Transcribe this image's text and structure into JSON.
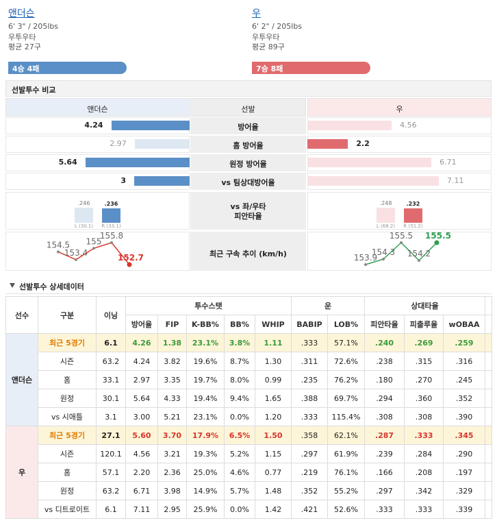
{
  "pitchers": [
    {
      "name": "앤더슨",
      "body": "6' 3\" / 205lbs",
      "hand": "우투우타",
      "pitches": "평균 27구",
      "record": "4승 4패",
      "color": "#5b8fc7"
    },
    {
      "name": "우",
      "body": "6' 2\" / 205lbs",
      "hand": "우투우타",
      "pitches": "평균 89구",
      "record": "7승 8패",
      "color": "#e06b6e"
    }
  ],
  "comparison": {
    "title": "선발투수 비교",
    "header": [
      "앤더슨",
      "선발",
      "우"
    ],
    "rows": [
      {
        "label": "방어율",
        "left": 4.24,
        "right": 4.56
      },
      {
        "label": "홈 방어율",
        "left": 2.97,
        "right": 2.2
      },
      {
        "label": "원정 방어율",
        "left": 5.64,
        "right": 6.71
      },
      {
        "label": "vs 팀상대방어율",
        "left": 3,
        "right": 7.11
      }
    ],
    "split": {
      "label": [
        "vs 좌/우타",
        "피안타율"
      ],
      "left": [
        {
          "value": 0.246,
          "label": ".246",
          "split": "L (30.1)"
        },
        {
          "value": 0.236,
          "label": ".236",
          "split": "R (33.1)"
        }
      ],
      "right": [
        {
          "value": 0.248,
          "label": ".248",
          "split": "L (68.2)"
        },
        {
          "value": 0.232,
          "label": ".232",
          "split": "R (51.2)"
        }
      ]
    },
    "velocity": {
      "label": "최근 구속 추이 (km/h)",
      "left": [
        154.5,
        153.4,
        155,
        155.8,
        152.7
      ],
      "right": [
        153.9,
        154.3,
        155.5,
        154.2,
        155.5
      ],
      "left_color": "#d9342b",
      "right_color": "#2e9e4f"
    }
  },
  "detail": {
    "title": "선발투수 상세데이터",
    "columns": [
      "선수",
      "구분",
      "이닝"
    ],
    "column_groups": [
      {
        "name": "투수스탯",
        "columns": [
          "방어율",
          "FIP",
          "K-BB%",
          "BB%",
          "WHIP"
        ]
      },
      {
        "name": "운",
        "columns": [
          "BABIP",
          "LOB%"
        ]
      },
      {
        "name": "상대타율",
        "columns": [
          "피안타율",
          "피출루율",
          "wOBAA"
        ]
      }
    ],
    "groups": [
      {
        "name": "앤더슨",
        "color": "#3a9a3a",
        "background": "#e8eef7",
        "rows": [
          {
            "label": "최근 5경기",
            "cells": [
              "6.1",
              "4.26",
              "1.38",
              "23.1%",
              "3.8%",
              "1.11",
              ".333",
              "57.1%",
              ".240",
              ".269",
              ".259"
            ]
          },
          {
            "label": "시즌",
            "cells": [
              "63.2",
              "4.24",
              "3.82",
              "19.6%",
              "8.7%",
              "1.30",
              ".311",
              "72.6%",
              ".238",
              ".315",
              ".316"
            ]
          },
          {
            "label": "홈",
            "cells": [
              "33.1",
              "2.97",
              "3.35",
              "19.7%",
              "8.0%",
              "0.99",
              ".235",
              "76.2%",
              ".180",
              ".270",
              ".245"
            ]
          },
          {
            "label": "원정",
            "cells": [
              "30.1",
              "5.64",
              "4.33",
              "19.4%",
              "9.4%",
              "1.65",
              ".388",
              "69.7%",
              ".294",
              ".360",
              ".352"
            ]
          },
          {
            "label": "vs 시애틀",
            "cells": [
              "3.1",
              "3.00",
              "5.21",
              "23.1%",
              "0.0%",
              "1.20",
              ".333",
              "115.4%",
              ".308",
              ".308",
              ".390"
            ]
          }
        ]
      },
      {
        "name": "우",
        "color": "#d9342b",
        "background": "#fbe9ea",
        "rows": [
          {
            "label": "최근 5경기",
            "cells": [
              "27.1",
              "5.60",
              "3.70",
              "17.9%",
              "6.5%",
              "1.50",
              ".358",
              "62.1%",
              ".287",
              ".333",
              ".345"
            ]
          },
          {
            "label": "시즌",
            "cells": [
              "120.1",
              "4.56",
              "3.21",
              "19.3%",
              "5.2%",
              "1.15",
              ".297",
              "61.9%",
              ".239",
              ".284",
              ".290"
            ]
          },
          {
            "label": "홈",
            "cells": [
              "57.1",
              "2.20",
              "2.36",
              "25.0%",
              "4.6%",
              "0.77",
              ".219",
              "76.1%",
              ".166",
              ".208",
              ".197"
            ]
          },
          {
            "label": "원정",
            "cells": [
              "63.2",
              "6.71",
              "3.98",
              "14.9%",
              "5.7%",
              "1.48",
              ".352",
              "55.2%",
              ".297",
              ".342",
              ".329"
            ]
          },
          {
            "label": "vs 디트로이트",
            "cells": [
              "6.1",
              "7.11",
              "2.95",
              "25.9%",
              "0.0%",
              "1.42",
              ".421",
              "52.6%",
              ".333",
              ".333",
              ".339"
            ]
          }
        ]
      }
    ]
  }
}
